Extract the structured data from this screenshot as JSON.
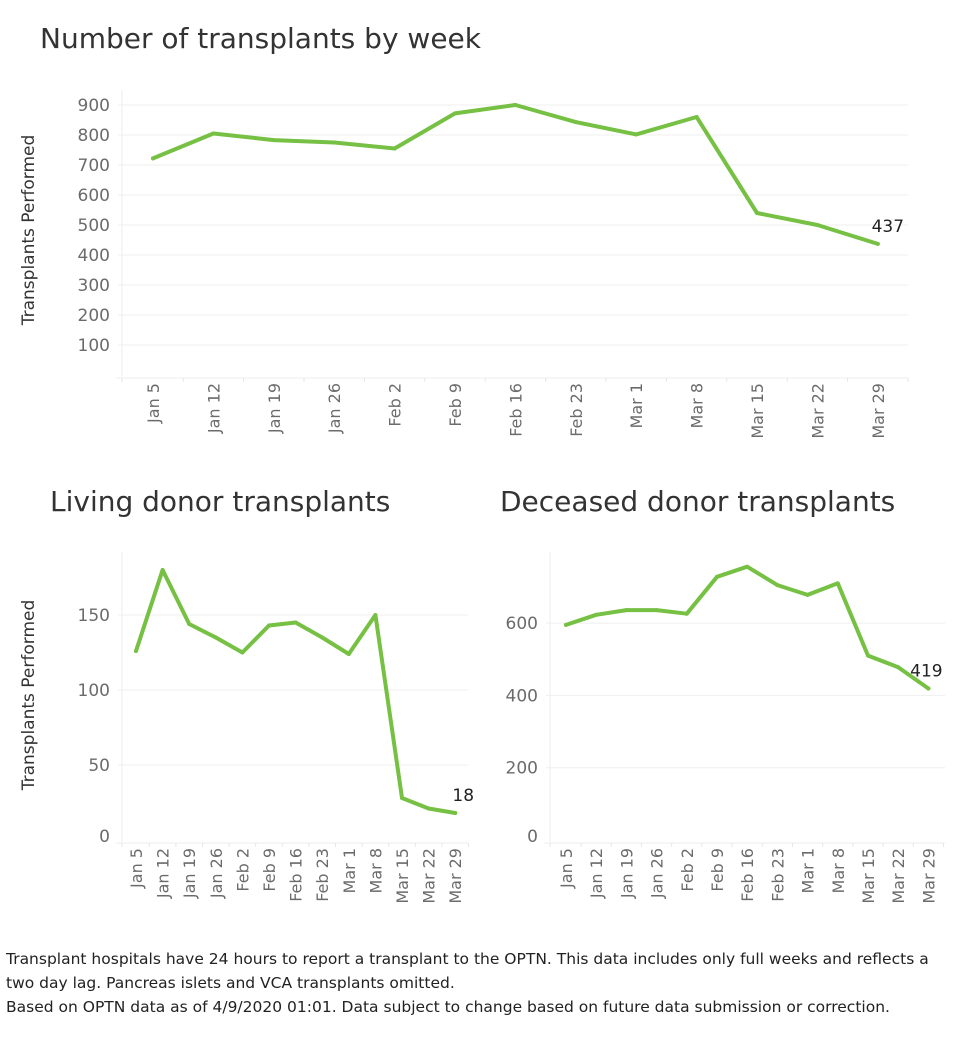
{
  "chart_data": [
    {
      "type": "line",
      "title": "Number of transplants by week",
      "xlabel": "",
      "ylabel": "Transplants Performed",
      "categories": [
        "Jan 5",
        "Jan 12",
        "Jan 19",
        "Jan 26",
        "Feb 2",
        "Feb 9",
        "Feb 16",
        "Feb 23",
        "Mar 1",
        "Mar 8",
        "Mar 15",
        "Mar 22",
        "Mar 29"
      ],
      "values": [
        722,
        805,
        783,
        775,
        755,
        872,
        900,
        843,
        802,
        860,
        540,
        500,
        437
      ],
      "yticks": [
        100,
        200,
        300,
        400,
        500,
        600,
        700,
        800,
        900
      ],
      "ylim": [
        0,
        910
      ],
      "end_label": "437",
      "grid": true,
      "line_color": "#76c043"
    },
    {
      "type": "line",
      "title": "Living donor transplants",
      "xlabel": "",
      "ylabel": "Transplants Performed",
      "categories": [
        "Jan 5",
        "Jan 12",
        "Jan 19",
        "Jan 26",
        "Feb 2",
        "Feb 9",
        "Feb 16",
        "Feb 23",
        "Mar 1",
        "Mar 8",
        "Mar 15",
        "Mar 22",
        "Mar 29"
      ],
      "values": [
        126,
        180,
        144,
        135,
        125,
        143,
        145,
        135,
        124,
        150,
        28,
        21,
        18
      ],
      "yticks": [
        0,
        50,
        100,
        150
      ],
      "ylim": [
        0,
        190
      ],
      "end_label": "18",
      "grid": true,
      "line_color": "#76c043"
    },
    {
      "type": "line",
      "title": "Deceased donor transplants",
      "xlabel": "",
      "ylabel": "",
      "categories": [
        "Jan 5",
        "Jan 12",
        "Jan 19",
        "Jan 26",
        "Feb 2",
        "Feb 9",
        "Feb 16",
        "Feb 23",
        "Mar 1",
        "Mar 8",
        "Mar 15",
        "Mar 22",
        "Mar 29"
      ],
      "values": [
        595,
        623,
        636,
        636,
        626,
        728,
        756,
        705,
        678,
        710,
        510,
        478,
        419
      ],
      "yticks": [
        0,
        200,
        400,
        600
      ],
      "ylim": [
        0,
        790
      ],
      "end_label": "419",
      "grid": true,
      "line_color": "#76c043"
    }
  ],
  "footnote": {
    "line1": "Transplant hospitals have 24 hours to report a transplant to the OPTN. This data includes only full weeks and reflects a two day lag. Pancreas islets and VCA transplants omitted.",
    "line2": "Based on OPTN data as of 4/9/2020 01:01. Data subject to change based on future data submission or correction."
  }
}
